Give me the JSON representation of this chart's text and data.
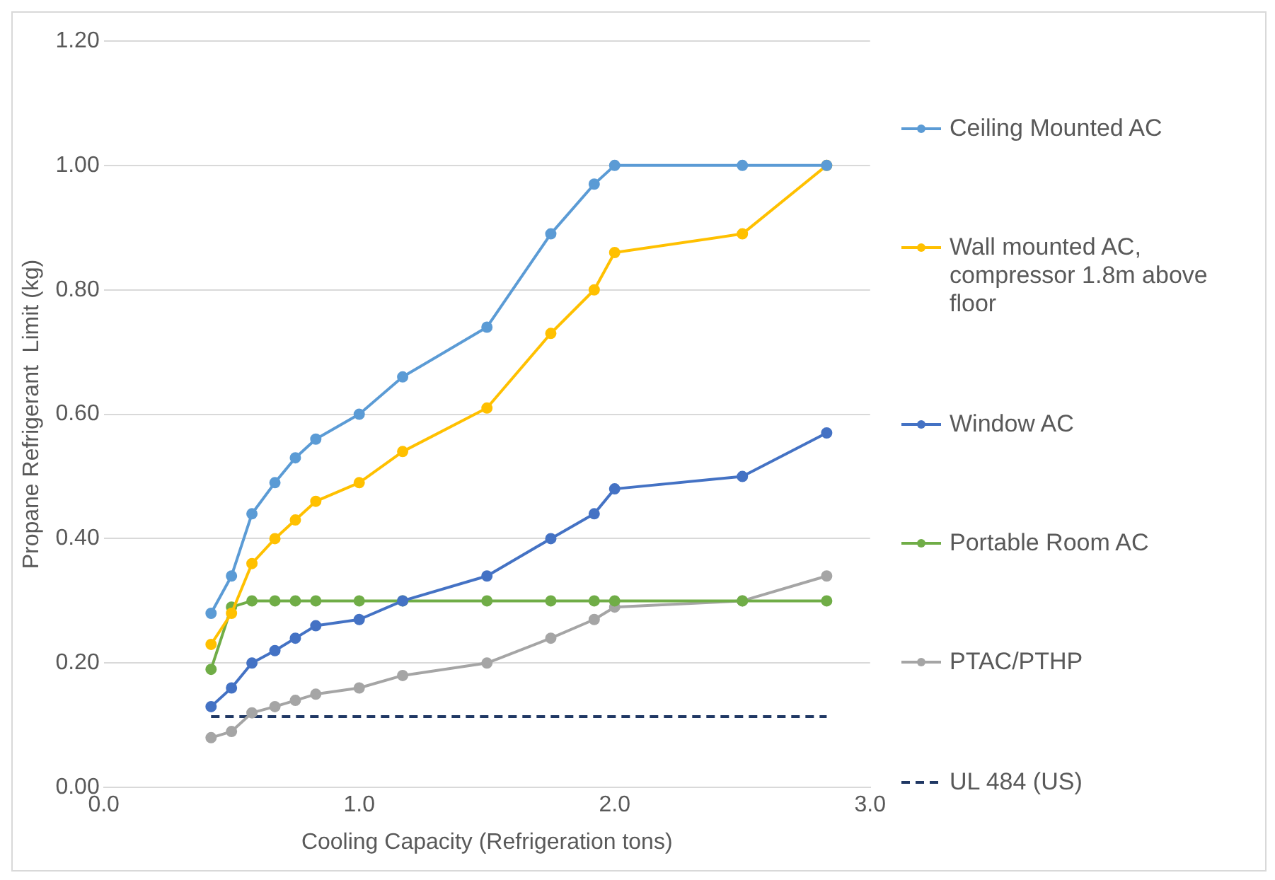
{
  "chart_data": {
    "type": "line",
    "xlabel": "Cooling Capacity (Refrigeration tons)",
    "ylabel": "Propane Refrigerant  Limit (kg)",
    "x": [
      0.42,
      0.5,
      0.58,
      0.67,
      0.75,
      0.83,
      1.0,
      1.17,
      1.5,
      1.75,
      1.92,
      2.0,
      2.5,
      2.83
    ],
    "series": [
      {
        "name": "Ceiling Mounted AC",
        "color": "#5b9bd5",
        "values": [
          0.28,
          0.34,
          0.44,
          0.49,
          0.53,
          0.56,
          0.6,
          0.66,
          0.74,
          0.89,
          0.97,
          1.0,
          1.0,
          1.0
        ]
      },
      {
        "name": "Wall mounted AC, compressor 1.8m above floor",
        "color": "#ffc000",
        "values": [
          0.23,
          0.28,
          0.36,
          0.4,
          0.43,
          0.46,
          0.49,
          0.54,
          0.61,
          0.73,
          0.8,
          0.86,
          0.89,
          1.0
        ]
      },
      {
        "name": "Window AC",
        "color": "#4472c4",
        "values": [
          0.13,
          0.16,
          0.2,
          0.22,
          0.24,
          0.26,
          0.27,
          0.3,
          0.34,
          0.4,
          0.44,
          0.48,
          0.5,
          0.57
        ]
      },
      {
        "name": "Portable Room AC",
        "color": "#70ad47",
        "values": [
          0.19,
          0.29,
          0.3,
          0.3,
          0.3,
          0.3,
          0.3,
          0.3,
          0.3,
          0.3,
          0.3,
          0.3,
          0.3,
          0.3
        ]
      },
      {
        "name": "PTAC/PTHP",
        "color": "#a5a5a5",
        "values": [
          0.08,
          0.09,
          0.12,
          0.13,
          0.14,
          0.15,
          0.16,
          0.18,
          0.2,
          0.24,
          0.27,
          0.29,
          0.3,
          0.34
        ]
      },
      {
        "name": "UL 484 (US)",
        "color": "#203864",
        "line_style": "dashed",
        "marker": "none",
        "x": [
          0.42,
          2.83
        ],
        "values": [
          0.114,
          0.114
        ]
      }
    ],
    "marker": "circle",
    "xlim": [
      0,
      3
    ],
    "xticks": [
      {
        "value": 0,
        "label": "0.0"
      },
      {
        "value": 1,
        "label": "1.0"
      },
      {
        "value": 2,
        "label": "2.0"
      },
      {
        "value": 3,
        "label": "3.0"
      }
    ],
    "ylim": [
      0,
      1.2
    ],
    "yticks": [
      {
        "value": 0,
        "label": "0.00"
      },
      {
        "value": 0.2,
        "label": "0.20"
      },
      {
        "value": 0.4,
        "label": "0.40"
      },
      {
        "value": 0.6,
        "label": "0.60"
      },
      {
        "value": 0.8,
        "label": "0.80"
      },
      {
        "value": 1,
        "label": "1.00"
      },
      {
        "value": 1.2,
        "label": "1.20"
      }
    ],
    "grid": "y",
    "legend": "right"
  }
}
